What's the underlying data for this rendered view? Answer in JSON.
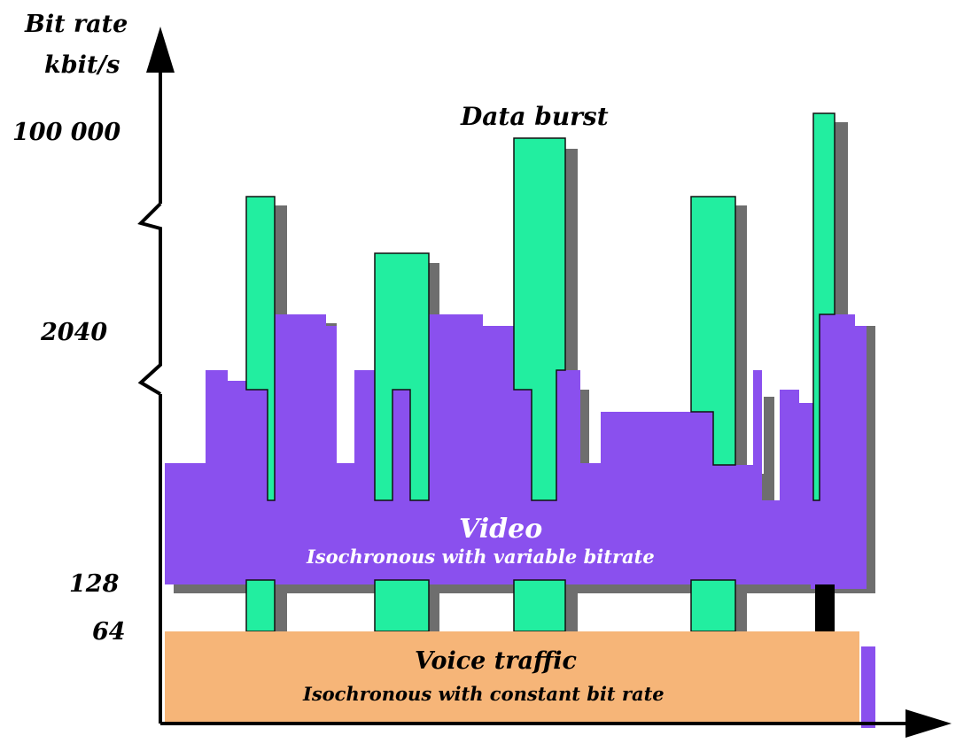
{
  "axis": {
    "y_title_line1": "Bit rate",
    "y_title_line2": "kbit/s",
    "ticks": [
      "100 000",
      "2040",
      "128",
      "64"
    ]
  },
  "labels": {
    "data_burst": "Data burst",
    "video_title": "Video",
    "video_subtitle": "Isochronous with variable bitrate",
    "voice_title": "Voice traffic",
    "voice_subtitle": "Isochronous with constant bit rate"
  },
  "colors": {
    "video": "#8a50ee",
    "data": "#22eea0",
    "voice": "#f6b578",
    "shadow": "#6e6e6e",
    "axis": "#000000"
  }
}
